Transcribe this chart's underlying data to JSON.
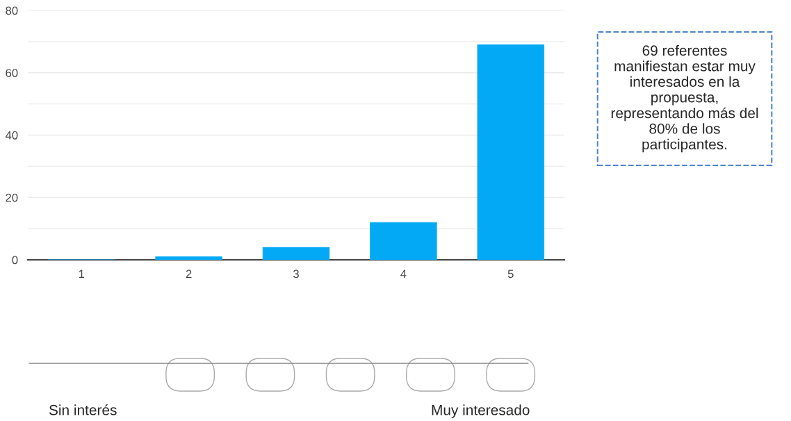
{
  "chart_data": {
    "type": "bar",
    "categories": [
      "1",
      "2",
      "3",
      "4",
      "5"
    ],
    "values": [
      0,
      1,
      4,
      12,
      69
    ],
    "color": "#03a9f4",
    "ylim": [
      0,
      80
    ],
    "yticks": [
      0,
      {
        "value": 10,
        "label": null
      },
      20,
      {
        "value": 30,
        "label": null
      },
      40,
      {
        "value": 50,
        "label": null
      },
      60,
      {
        "value": 70,
        "label": null
      },
      80
    ],
    "grid": "y",
    "legend": false,
    "annotations": [
      "69 referentes\nmanifiestan estar muy\ninteresados en la\npropuesta,\nrepresentando más del\n80% de los\nparticipantes.",
      "Sin interés",
      "Muy interesado"
    ]
  }
}
